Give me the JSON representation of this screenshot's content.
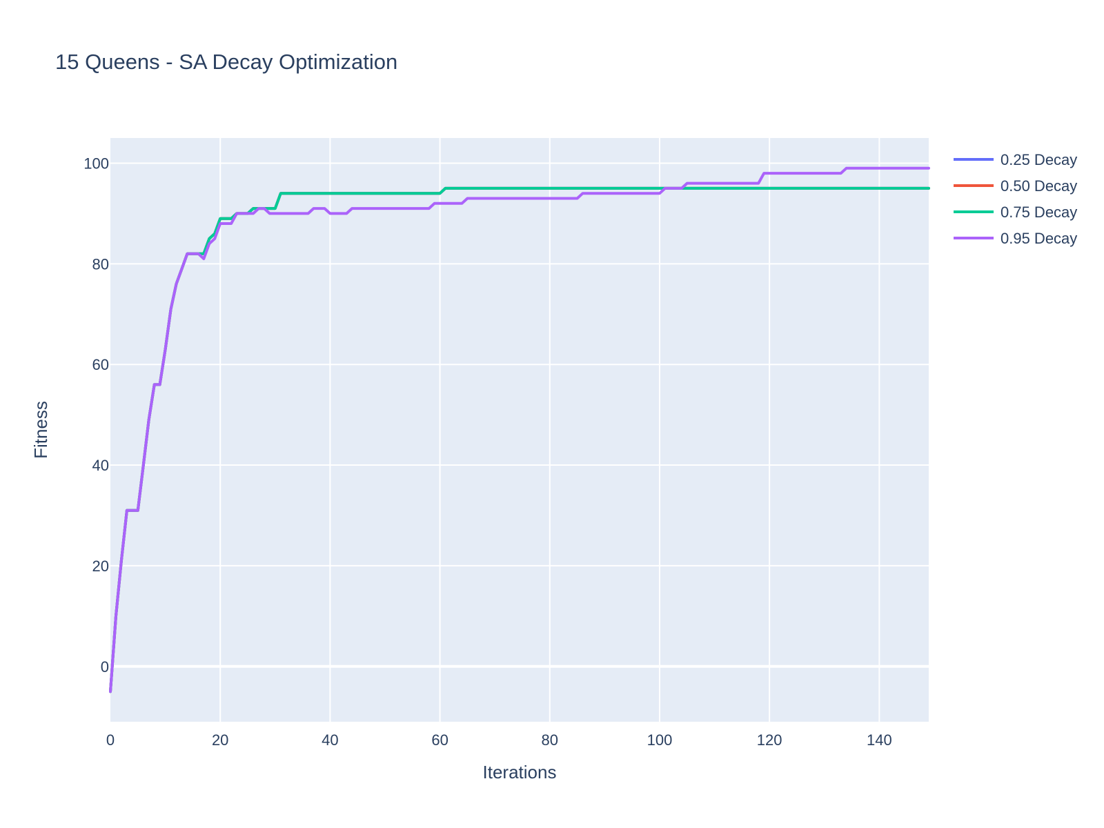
{
  "chart_data": {
    "type": "line",
    "title": "15 Queens - SA Decay Optimization",
    "xlabel": "Iterations",
    "ylabel": "Fitness",
    "xlim": [
      0,
      149
    ],
    "ylim": [
      -11,
      105
    ],
    "xticks": [
      0,
      20,
      40,
      60,
      80,
      100,
      120,
      140
    ],
    "yticks": [
      0,
      20,
      40,
      60,
      80,
      100
    ],
    "grid": true,
    "legend": "right",
    "plot_bg": "#e5ecf6",
    "series": [
      {
        "name": "0.25 Decay",
        "color": "#636efa",
        "points": [
          [
            0,
            -5
          ],
          [
            1,
            10
          ],
          [
            2,
            21
          ],
          [
            3,
            31
          ],
          [
            5,
            31
          ],
          [
            6,
            40
          ],
          [
            7,
            49
          ],
          [
            8,
            56
          ],
          [
            9,
            56
          ],
          [
            10,
            63
          ],
          [
            11,
            71
          ],
          [
            12,
            76
          ],
          [
            13,
            79
          ],
          [
            14,
            82
          ],
          [
            17,
            82
          ],
          [
            18,
            85
          ],
          [
            19,
            86
          ],
          [
            20,
            89
          ],
          [
            22,
            89
          ],
          [
            23,
            90
          ],
          [
            25,
            90
          ],
          [
            26,
            91
          ],
          [
            30,
            91
          ],
          [
            31,
            94
          ],
          [
            60,
            94
          ],
          [
            61,
            95
          ],
          [
            149,
            95
          ]
        ]
      },
      {
        "name": "0.50 Decay",
        "color": "#ef553b",
        "points": [
          [
            0,
            -5
          ],
          [
            1,
            10
          ],
          [
            2,
            21
          ],
          [
            3,
            31
          ],
          [
            5,
            31
          ],
          [
            6,
            40
          ],
          [
            7,
            49
          ],
          [
            8,
            56
          ],
          [
            9,
            56
          ],
          [
            10,
            63
          ],
          [
            11,
            71
          ],
          [
            12,
            76
          ],
          [
            13,
            79
          ],
          [
            14,
            82
          ],
          [
            17,
            82
          ],
          [
            18,
            85
          ],
          [
            19,
            86
          ],
          [
            20,
            89
          ],
          [
            22,
            89
          ],
          [
            23,
            90
          ],
          [
            25,
            90
          ],
          [
            26,
            91
          ],
          [
            30,
            91
          ],
          [
            31,
            94
          ],
          [
            60,
            94
          ],
          [
            61,
            95
          ],
          [
            149,
            95
          ]
        ]
      },
      {
        "name": "0.75 Decay",
        "color": "#00cc96",
        "points": [
          [
            0,
            -5
          ],
          [
            1,
            10
          ],
          [
            2,
            21
          ],
          [
            3,
            31
          ],
          [
            5,
            31
          ],
          [
            6,
            40
          ],
          [
            7,
            49
          ],
          [
            8,
            56
          ],
          [
            9,
            56
          ],
          [
            10,
            63
          ],
          [
            11,
            71
          ],
          [
            12,
            76
          ],
          [
            13,
            79
          ],
          [
            14,
            82
          ],
          [
            17,
            82
          ],
          [
            18,
            85
          ],
          [
            19,
            86
          ],
          [
            20,
            89
          ],
          [
            22,
            89
          ],
          [
            23,
            90
          ],
          [
            25,
            90
          ],
          [
            26,
            91
          ],
          [
            30,
            91
          ],
          [
            31,
            94
          ],
          [
            60,
            94
          ],
          [
            61,
            95
          ],
          [
            149,
            95
          ]
        ]
      },
      {
        "name": "0.95 Decay",
        "color": "#ab63fa",
        "points": [
          [
            0,
            -5
          ],
          [
            1,
            10
          ],
          [
            2,
            21
          ],
          [
            3,
            31
          ],
          [
            5,
            31
          ],
          [
            6,
            40
          ],
          [
            7,
            49
          ],
          [
            8,
            56
          ],
          [
            9,
            56
          ],
          [
            10,
            63
          ],
          [
            11,
            71
          ],
          [
            12,
            76
          ],
          [
            13,
            79
          ],
          [
            14,
            82
          ],
          [
            16,
            82
          ],
          [
            17,
            81
          ],
          [
            18,
            84
          ],
          [
            19,
            85
          ],
          [
            20,
            88
          ],
          [
            22,
            88
          ],
          [
            23,
            90
          ],
          [
            26,
            90
          ],
          [
            27,
            91
          ],
          [
            28,
            91
          ],
          [
            29,
            90
          ],
          [
            36,
            90
          ],
          [
            37,
            91
          ],
          [
            39,
            91
          ],
          [
            40,
            90
          ],
          [
            43,
            90
          ],
          [
            44,
            91
          ],
          [
            58,
            91
          ],
          [
            59,
            92
          ],
          [
            64,
            92
          ],
          [
            65,
            93
          ],
          [
            85,
            93
          ],
          [
            86,
            94
          ],
          [
            100,
            94
          ],
          [
            101,
            95
          ],
          [
            104,
            95
          ],
          [
            105,
            96
          ],
          [
            118,
            96
          ],
          [
            119,
            98
          ],
          [
            133,
            98
          ],
          [
            134,
            99
          ],
          [
            149,
            99
          ]
        ]
      }
    ]
  }
}
